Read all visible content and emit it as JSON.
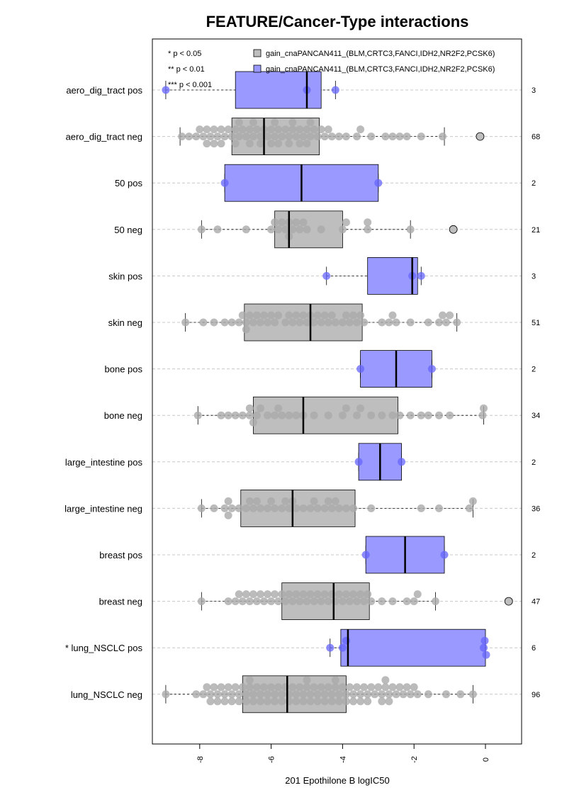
{
  "chart_data": {
    "type": "box",
    "title": "FEATURE/Cancer-Type interactions",
    "xlabel": "201 Epothilone B logIC50",
    "xlim": [
      -9.5,
      0.8
    ],
    "x_ticks": [
      -8,
      -6,
      -4,
      -2,
      0
    ],
    "x_tick_labels": [
      "-8",
      "-6",
      "-4",
      "-2",
      "0"
    ],
    "significance_legend": [
      "* p < 0.05",
      "** p < 0.01",
      "*** p < 0.001"
    ],
    "legend": [
      {
        "label": "gain_cnaPANCAN411_(BLM,CRTC3,FANCI,IDH2,NR2F2,PCSK6)",
        "color": "#bebebe"
      },
      {
        "label": "gain_cnaPANCAN411_(BLM,CRTC3,FANCI,IDH2,NR2F2,PCSK6)",
        "color": "#9999ff"
      }
    ],
    "colors": {
      "neg": "#bebebe",
      "pos": "#9999ff",
      "neg_point": "#aaaaaa",
      "pos_point": "#6666ff"
    },
    "rows": [
      {
        "label": "aero_dig_tract pos",
        "group": "pos",
        "n": "3",
        "q1": -7.0,
        "median": -5.0,
        "q3": -4.6,
        "wlo": -8.95,
        "whi": -4.2,
        "outliers": [],
        "points": [
          -8.95,
          -5.0,
          -4.2
        ]
      },
      {
        "label": "aero_dig_tract neg",
        "group": "neg",
        "n": "68",
        "q1": -7.1,
        "median": -6.2,
        "q3": -4.65,
        "wlo": -8.55,
        "whi": -1.15,
        "outliers": [
          -0.15
        ],
        "points": [
          -8.5,
          -8.3,
          -8.1,
          -8.0,
          -7.9,
          -7.8,
          -7.7,
          -7.6,
          -7.5,
          -7.4,
          -7.3,
          -7.2,
          -7.1,
          -7.0,
          -6.9,
          -6.8,
          -6.7,
          -6.6,
          -6.5,
          -6.4,
          -6.3,
          -6.2,
          -6.1,
          -6.0,
          -5.9,
          -5.8,
          -5.7,
          -5.6,
          -5.5,
          -5.4,
          -5.3,
          -5.2,
          -5.1,
          -5.0,
          -4.9,
          -4.8,
          -4.7,
          -4.5,
          -4.4,
          -4.3,
          -4.1,
          -3.9,
          -3.6,
          -3.5,
          -3.2,
          -2.8,
          -2.6,
          -2.4,
          -2.2,
          -1.8,
          -1.2,
          -7.6,
          -7.4,
          -6.9,
          -6.6,
          -6.3,
          -6.0,
          -5.8,
          -5.4,
          -5.2,
          -4.9,
          -4.6,
          -7.8,
          -7.0,
          -6.5,
          -5.9,
          -5.5,
          -5.0
        ]
      },
      {
        "label": "50 pos",
        "group": "pos",
        "n": "2",
        "q1": -7.3,
        "median": -5.15,
        "q3": -3.0,
        "wlo": -7.3,
        "whi": -3.0,
        "outliers": [],
        "points": [
          -7.3,
          -3.0
        ]
      },
      {
        "label": "50 neg",
        "group": "neg",
        "n": "21",
        "q1": -5.9,
        "median": -5.5,
        "q3": -4.0,
        "wlo": -7.95,
        "whi": -2.1,
        "outliers": [
          -0.9
        ],
        "points": [
          -7.95,
          -7.5,
          -6.7,
          -6.0,
          -5.8,
          -5.6,
          -5.5,
          -5.4,
          -5.3,
          -5.1,
          -4.6,
          -4.0,
          -3.9,
          -3.3,
          -2.1,
          -5.9,
          -5.2,
          -5.0,
          -3.3,
          -5.7,
          -5.5
        ]
      },
      {
        "label": "skin pos",
        "group": "pos",
        "n": "3",
        "q1": -3.3,
        "median": -2.05,
        "q3": -1.9,
        "wlo": -4.45,
        "whi": -1.8,
        "outliers": [],
        "points": [
          -4.45,
          -2.05,
          -1.8
        ]
      },
      {
        "label": "skin neg",
        "group": "neg",
        "n": "51",
        "q1": -6.75,
        "median": -4.9,
        "q3": -3.45,
        "wlo": -8.4,
        "whi": -0.8,
        "outliers": [],
        "points": [
          -8.4,
          -7.9,
          -7.6,
          -7.3,
          -7.1,
          -6.9,
          -6.7,
          -6.6,
          -6.4,
          -6.2,
          -6.0,
          -5.8,
          -5.6,
          -5.4,
          -5.2,
          -5.0,
          -4.8,
          -4.6,
          -4.4,
          -4.2,
          -4.0,
          -3.8,
          -3.6,
          -3.4,
          -2.9,
          -2.7,
          -2.5,
          -2.1,
          -1.6,
          -1.3,
          -1.1,
          -0.8,
          -6.8,
          -6.5,
          -6.3,
          -5.9,
          -5.5,
          -5.1,
          -4.7,
          -4.3,
          -3.9,
          -3.5,
          -6.7,
          -6.1,
          -5.3,
          -4.5,
          -3.7,
          -1.2,
          -1.0,
          -2.6,
          -4.9
        ]
      },
      {
        "label": "bone pos",
        "group": "pos",
        "n": "2",
        "q1": -3.5,
        "median": -2.5,
        "q3": -1.5,
        "wlo": -3.5,
        "whi": -1.5,
        "outliers": [],
        "points": [
          -3.5,
          -1.5
        ]
      },
      {
        "label": "bone neg",
        "group": "neg",
        "n": "34",
        "q1": -6.5,
        "median": -5.1,
        "q3": -2.45,
        "wlo": -8.05,
        "whi": -0.05,
        "outliers": [],
        "points": [
          -8.05,
          -7.4,
          -7.2,
          -7.0,
          -6.8,
          -6.6,
          -6.5,
          -6.3,
          -6.1,
          -5.9,
          -5.7,
          -5.5,
          -5.3,
          -5.1,
          -4.8,
          -4.4,
          -4.0,
          -3.6,
          -3.5,
          -3.2,
          -2.9,
          -2.4,
          -2.1,
          -1.8,
          -1.6,
          -1.3,
          -1.0,
          -0.05,
          -6.4,
          -5.8,
          -3.9,
          -2.6,
          -6.6,
          -0.08
        ]
      },
      {
        "label": "large_intestine pos",
        "group": "pos",
        "n": "2",
        "q1": -3.55,
        "median": -2.95,
        "q3": -2.35,
        "wlo": -3.55,
        "whi": -2.35,
        "outliers": [],
        "points": [
          -3.55,
          -2.35
        ]
      },
      {
        "label": "large_intestine neg",
        "group": "neg",
        "n": "36",
        "q1": -6.85,
        "median": -5.4,
        "q3": -3.65,
        "wlo": -7.95,
        "whi": -0.35,
        "outliers": [],
        "points": [
          -7.95,
          -7.6,
          -7.3,
          -7.1,
          -6.9,
          -6.7,
          -6.5,
          -6.3,
          -6.1,
          -5.9,
          -5.7,
          -5.5,
          -5.3,
          -5.1,
          -4.9,
          -4.7,
          -4.5,
          -4.3,
          -4.1,
          -3.9,
          -3.7,
          -3.2,
          -1.8,
          -1.3,
          -0.45,
          -0.35,
          -7.2,
          -6.6,
          -6.0,
          -5.4,
          -4.8,
          -4.2,
          -7.2,
          -6.4,
          -5.6,
          -4.4
        ]
      },
      {
        "label": "breast pos",
        "group": "pos",
        "n": "2",
        "q1": -3.35,
        "median": -2.25,
        "q3": -1.15,
        "wlo": -3.35,
        "whi": -1.15,
        "outliers": [],
        "points": [
          -3.35,
          -1.15
        ]
      },
      {
        "label": "breast neg",
        "group": "neg",
        "n": "47",
        "q1": -5.7,
        "median": -4.25,
        "q3": -3.25,
        "wlo": -7.95,
        "whi": -1.4,
        "outliers": [
          0.65
        ],
        "points": [
          -7.95,
          -7.2,
          -7.0,
          -6.8,
          -6.6,
          -6.4,
          -6.2,
          -6.0,
          -5.8,
          -5.6,
          -5.4,
          -5.2,
          -5.0,
          -4.8,
          -4.6,
          -4.4,
          -4.2,
          -4.0,
          -3.8,
          -3.6,
          -3.4,
          -3.2,
          -2.9,
          -2.6,
          -2.2,
          -1.9,
          -1.4,
          -6.9,
          -6.5,
          -6.1,
          -5.7,
          -5.3,
          -4.9,
          -4.5,
          -4.1,
          -3.7,
          -3.3,
          -2.0,
          -6.7,
          -5.9,
          -5.1,
          -4.3,
          -3.5,
          -6.3,
          -4.7,
          -5.5,
          -3.9
        ]
      },
      {
        "label": "* lung_NSCLC pos",
        "group": "pos",
        "n": "6",
        "q1": -4.05,
        "median": -3.85,
        "q3": 0.0,
        "wlo": -4.35,
        "whi": 0.0,
        "outliers": [],
        "points": [
          -4.35,
          -4.0,
          -3.9,
          -0.05,
          0.02,
          -0.02
        ]
      },
      {
        "label": "lung_NSCLC neg",
        "group": "neg",
        "n": "96",
        "q1": -6.8,
        "median": -5.55,
        "q3": -3.9,
        "wlo": -8.95,
        "whi": -0.35,
        "outliers": [],
        "points": [
          -8.95,
          -8.1,
          -7.9,
          -7.7,
          -7.5,
          -7.3,
          -7.1,
          -6.9,
          -6.7,
          -6.5,
          -6.3,
          -6.1,
          -5.9,
          -5.7,
          -5.5,
          -5.3,
          -5.1,
          -4.9,
          -4.7,
          -4.5,
          -4.3,
          -4.1,
          -3.9,
          -3.7,
          -3.5,
          -3.3,
          -3.1,
          -2.9,
          -2.7,
          -2.5,
          -2.3,
          -2.1,
          -1.9,
          -1.6,
          -1.1,
          -0.7,
          -0.35,
          -7.8,
          -7.6,
          -7.4,
          -7.2,
          -7.0,
          -6.8,
          -6.6,
          -6.4,
          -6.2,
          -6.0,
          -5.8,
          -5.6,
          -5.4,
          -5.2,
          -5.0,
          -4.8,
          -4.6,
          -4.4,
          -4.2,
          -4.0,
          -3.8,
          -3.6,
          -3.4,
          -3.2,
          -3.0,
          -2.8,
          -2.6,
          -2.4,
          -2.2,
          -2.0,
          -7.7,
          -7.3,
          -6.9,
          -6.5,
          -6.1,
          -5.7,
          -5.3,
          -4.9,
          -4.5,
          -4.1,
          -3.7,
          -3.3,
          -2.9,
          -2.7,
          -7.5,
          -7.1,
          -6.7,
          -6.3,
          -5.9,
          -5.5,
          -5.1,
          -4.7,
          -4.3,
          -3.9,
          -3.5,
          -2.8,
          -6.6,
          -5.0,
          -4.2
        ]
      }
    ]
  }
}
